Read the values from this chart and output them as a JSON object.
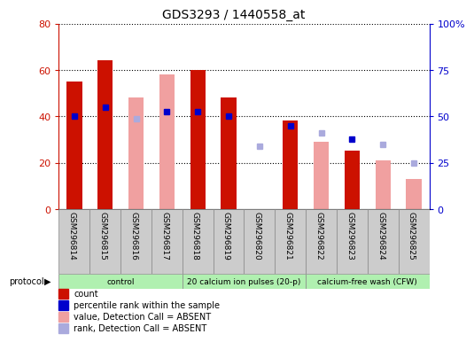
{
  "title": "GDS3293 / 1440558_at",
  "samples": [
    "GSM296814",
    "GSM296815",
    "GSM296816",
    "GSM296817",
    "GSM296818",
    "GSM296819",
    "GSM296820",
    "GSM296821",
    "GSM296822",
    "GSM296823",
    "GSM296824",
    "GSM296825"
  ],
  "count_values": [
    55,
    64,
    null,
    null,
    60,
    48,
    null,
    38,
    null,
    25,
    null,
    null
  ],
  "count_absent_values": [
    null,
    null,
    48,
    58,
    null,
    null,
    null,
    null,
    29,
    null,
    21,
    13
  ],
  "percentile_values": [
    40,
    44,
    null,
    42,
    42,
    40,
    null,
    36,
    null,
    30,
    null,
    null
  ],
  "percentile_absent_values": [
    null,
    null,
    39,
    null,
    null,
    null,
    27,
    null,
    33,
    null,
    28,
    20
  ],
  "protocols": [
    {
      "label": "control",
      "start": 0,
      "end": 4,
      "color": "#b0f0b0"
    },
    {
      "label": "20 calcium ion pulses (20-p)",
      "start": 4,
      "end": 8,
      "color": "#b0f0b0"
    },
    {
      "label": "calcium-free wash (CFW)",
      "start": 8,
      "end": 12,
      "color": "#b0f0b0"
    }
  ],
  "ylim_left": [
    0,
    80
  ],
  "ylim_right": [
    0,
    100
  ],
  "yticks_left": [
    0,
    20,
    40,
    60,
    80
  ],
  "yticks_right": [
    0,
    25,
    50,
    75,
    100
  ],
  "ytick_labels_right": [
    "0",
    "25",
    "50",
    "75",
    "100%"
  ],
  "bar_width": 0.5,
  "count_color": "#cc1100",
  "count_absent_color": "#f0a0a0",
  "percentile_color": "#0000cc",
  "percentile_absent_color": "#aaaadd",
  "legend_labels": [
    "count",
    "percentile rank within the sample",
    "value, Detection Call = ABSENT",
    "rank, Detection Call = ABSENT"
  ],
  "legend_colors": [
    "#cc1100",
    "#0000cc",
    "#f0a0a0",
    "#aaaadd"
  ],
  "left_axis_color": "#cc1100",
  "right_axis_color": "#0000cc",
  "xlabel_bg_color": "#cccccc",
  "protocol_border_color": "#888888"
}
